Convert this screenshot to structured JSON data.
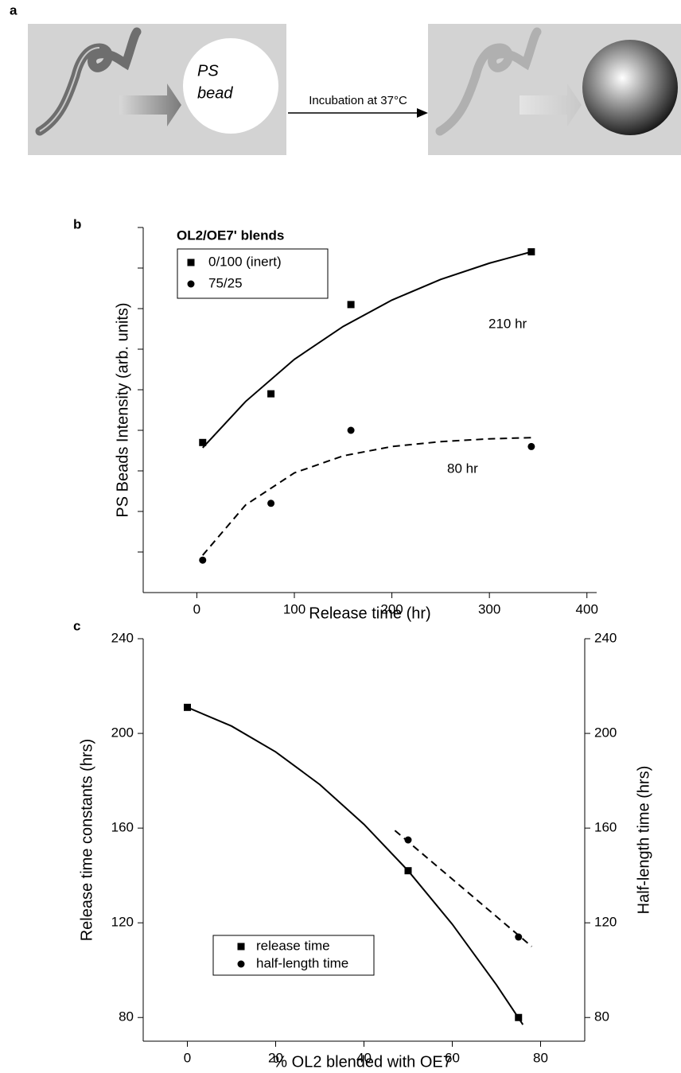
{
  "diagram": {
    "label": "a",
    "bead_text": [
      "PS",
      "bead"
    ],
    "arrow_text": "Incubation at 37°C"
  },
  "chart_data": [
    {
      "type": "scatter",
      "panel": "b",
      "ylabel": "PS Beads Intensity (arb. units)",
      "xlabel": "Release time (hr)",
      "xlim": [
        -55,
        410
      ],
      "xticks": [
        0,
        100,
        200,
        300,
        400
      ],
      "ylim": [
        0,
        9
      ],
      "yticks": [
        1,
        2,
        3,
        4,
        5,
        6,
        7,
        8,
        9
      ],
      "show_ytick_labels": false,
      "legend_title": "OL2/OE7' blends",
      "series": [
        {
          "name": "0/100 (inert)",
          "marker": "square",
          "color": "#000000",
          "x": [
            6,
            76,
            158,
            343
          ],
          "values": [
            3.7,
            4.9,
            7.1,
            8.4
          ]
        },
        {
          "name": "75/25",
          "marker": "circle",
          "color": "#000000",
          "x": [
            6,
            76,
            158,
            343
          ],
          "values": [
            0.8,
            2.2,
            4.0,
            3.6
          ]
        }
      ],
      "fits": [
        {
          "dashed": false,
          "color": "#000000",
          "x": [
            6,
            50,
            100,
            150,
            200,
            250,
            300,
            343
          ],
          "values": [
            3.57,
            4.71,
            5.75,
            6.56,
            7.21,
            7.72,
            8.12,
            8.4
          ]
        },
        {
          "dashed": true,
          "color": "#000000",
          "x": [
            6,
            50,
            100,
            150,
            200,
            250,
            300,
            343
          ],
          "values": [
            0.92,
            2.16,
            2.95,
            3.37,
            3.6,
            3.72,
            3.79,
            3.82
          ]
        }
      ],
      "annotations": [
        "210 hr",
        "80 hr"
      ]
    },
    {
      "type": "scatter",
      "panel": "c",
      "ylabel": "Release time constants (hrs)",
      "y2label": "Half-length time (hrs)",
      "xlabel": "% OL2 blended with OE7'",
      "xlim": [
        -10,
        90
      ],
      "xticks": [
        0,
        20,
        40,
        60,
        80
      ],
      "ylim": [
        70,
        240
      ],
      "yticks": [
        80,
        120,
        160,
        200,
        240
      ],
      "y2lim": [
        70,
        240
      ],
      "y2ticks": [
        80,
        120,
        160,
        200,
        240
      ],
      "series": [
        {
          "name": "release time",
          "marker": "square",
          "color": "#000000",
          "x": [
            0,
            50,
            75
          ],
          "values": [
            211,
            142,
            80
          ]
        },
        {
          "name": "half-length time",
          "marker": "circle",
          "color": "#000000",
          "axis": "y2",
          "x": [
            50,
            75
          ],
          "values": [
            155,
            114
          ]
        }
      ],
      "fits": [
        {
          "dashed": false,
          "color": "#000000",
          "x": [
            0,
            10,
            20,
            30,
            40,
            50,
            60,
            70,
            76
          ],
          "values": [
            211,
            203.1,
            192.2,
            178.4,
            161.6,
            142,
            119.4,
            93.8,
            77
          ]
        },
        {
          "dashed": true,
          "color": "#000000",
          "axis": "y2",
          "x": [
            47,
            78
          ],
          "values": [
            159,
            110
          ]
        }
      ]
    }
  ]
}
